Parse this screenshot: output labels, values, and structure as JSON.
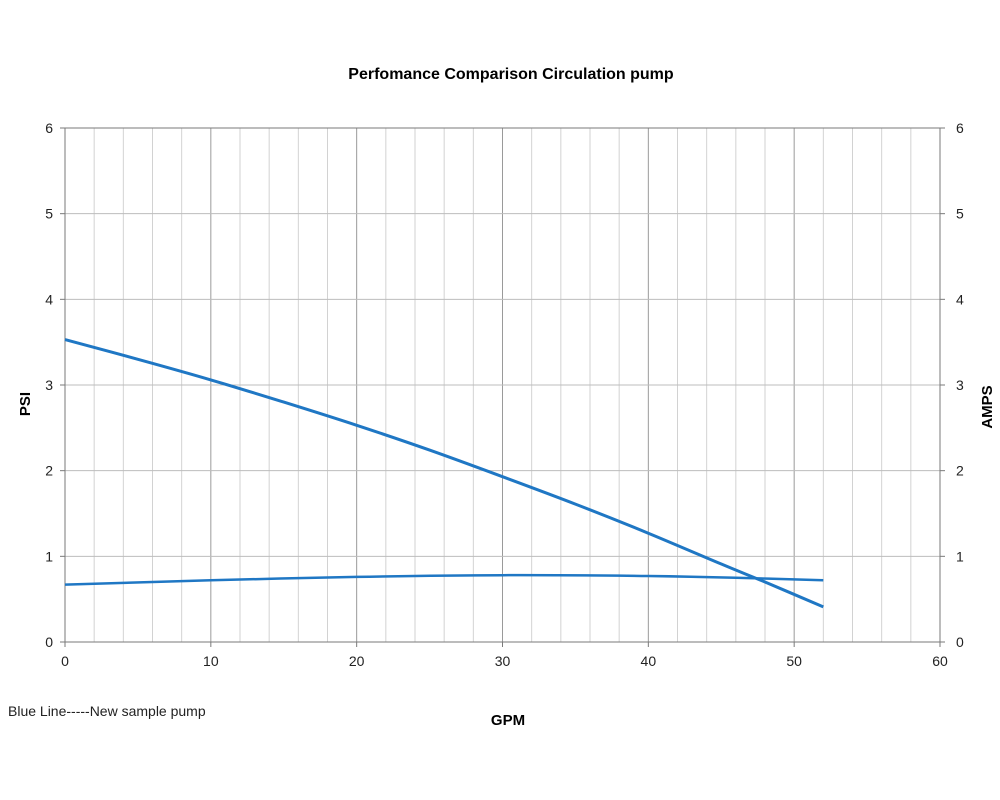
{
  "chart_data": {
    "type": "line",
    "title": "Perfomance Comparison Circulation pump",
    "xlabel": "GPM",
    "ylabel": "PSI",
    "y2label": "AMPS",
    "xlim": [
      0,
      60
    ],
    "ylim": [
      0,
      6
    ],
    "y2lim": [
      0,
      6
    ],
    "x_ticks": [
      0,
      10,
      20,
      30,
      40,
      50,
      60
    ],
    "y_ticks": [
      0,
      1,
      2,
      3,
      4,
      5,
      6
    ],
    "y2_ticks": [
      0,
      1,
      2,
      3,
      4,
      5,
      6
    ],
    "grid": true,
    "series": [
      {
        "color": "#1f77c4",
        "x": [
          0,
          5,
          10,
          15,
          20,
          25,
          30,
          35,
          40,
          45,
          48,
          52
        ],
        "y": [
          3.53,
          3.3,
          3.06,
          2.8,
          2.53,
          2.24,
          1.93,
          1.61,
          1.27,
          0.91,
          0.7,
          0.41
        ]
      },
      {
        "color": "#1f77c4",
        "x": [
          0,
          10,
          20,
          30,
          40,
          46,
          52
        ],
        "y": [
          0.67,
          0.72,
          0.76,
          0.78,
          0.77,
          0.75,
          0.72
        ]
      }
    ],
    "note": "Blue Line-----New sample pump"
  }
}
